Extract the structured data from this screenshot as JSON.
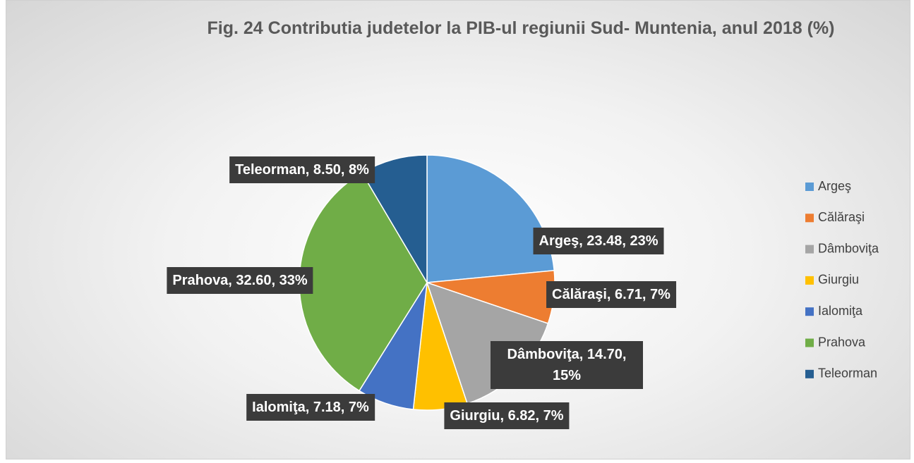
{
  "chart_data": {
    "type": "pie",
    "title": "Fig. 24 Contributia judetelor  la PIB-ul regiunii Sud- Muntenia, anul 2018 (%)",
    "categories": [
      "Argeş",
      "Călăraşi",
      "Dâmboviţa",
      "Giurgiu",
      "Ialomiţa",
      "Prahova",
      "Teleorman"
    ],
    "values": [
      23.48,
      6.71,
      14.7,
      6.82,
      7.18,
      32.6,
      8.5
    ],
    "value_labels": [
      "Argeş, 23.48, 23%",
      "Călăraşi, 6.71, 7%",
      "Dâmboviţa, 14.70, 15%",
      "Giurgiu, 6.82, 7%",
      "Ialomiţa, 7.18, 7%",
      "Prahova, 32.60, 33%",
      "Teleorman, 8.50, 8%"
    ],
    "colors": [
      "#5b9bd5",
      "#ed7d31",
      "#a5a5a5",
      "#ffc000",
      "#4472c4",
      "#70ad47",
      "#255e91"
    ],
    "legend": "right"
  }
}
